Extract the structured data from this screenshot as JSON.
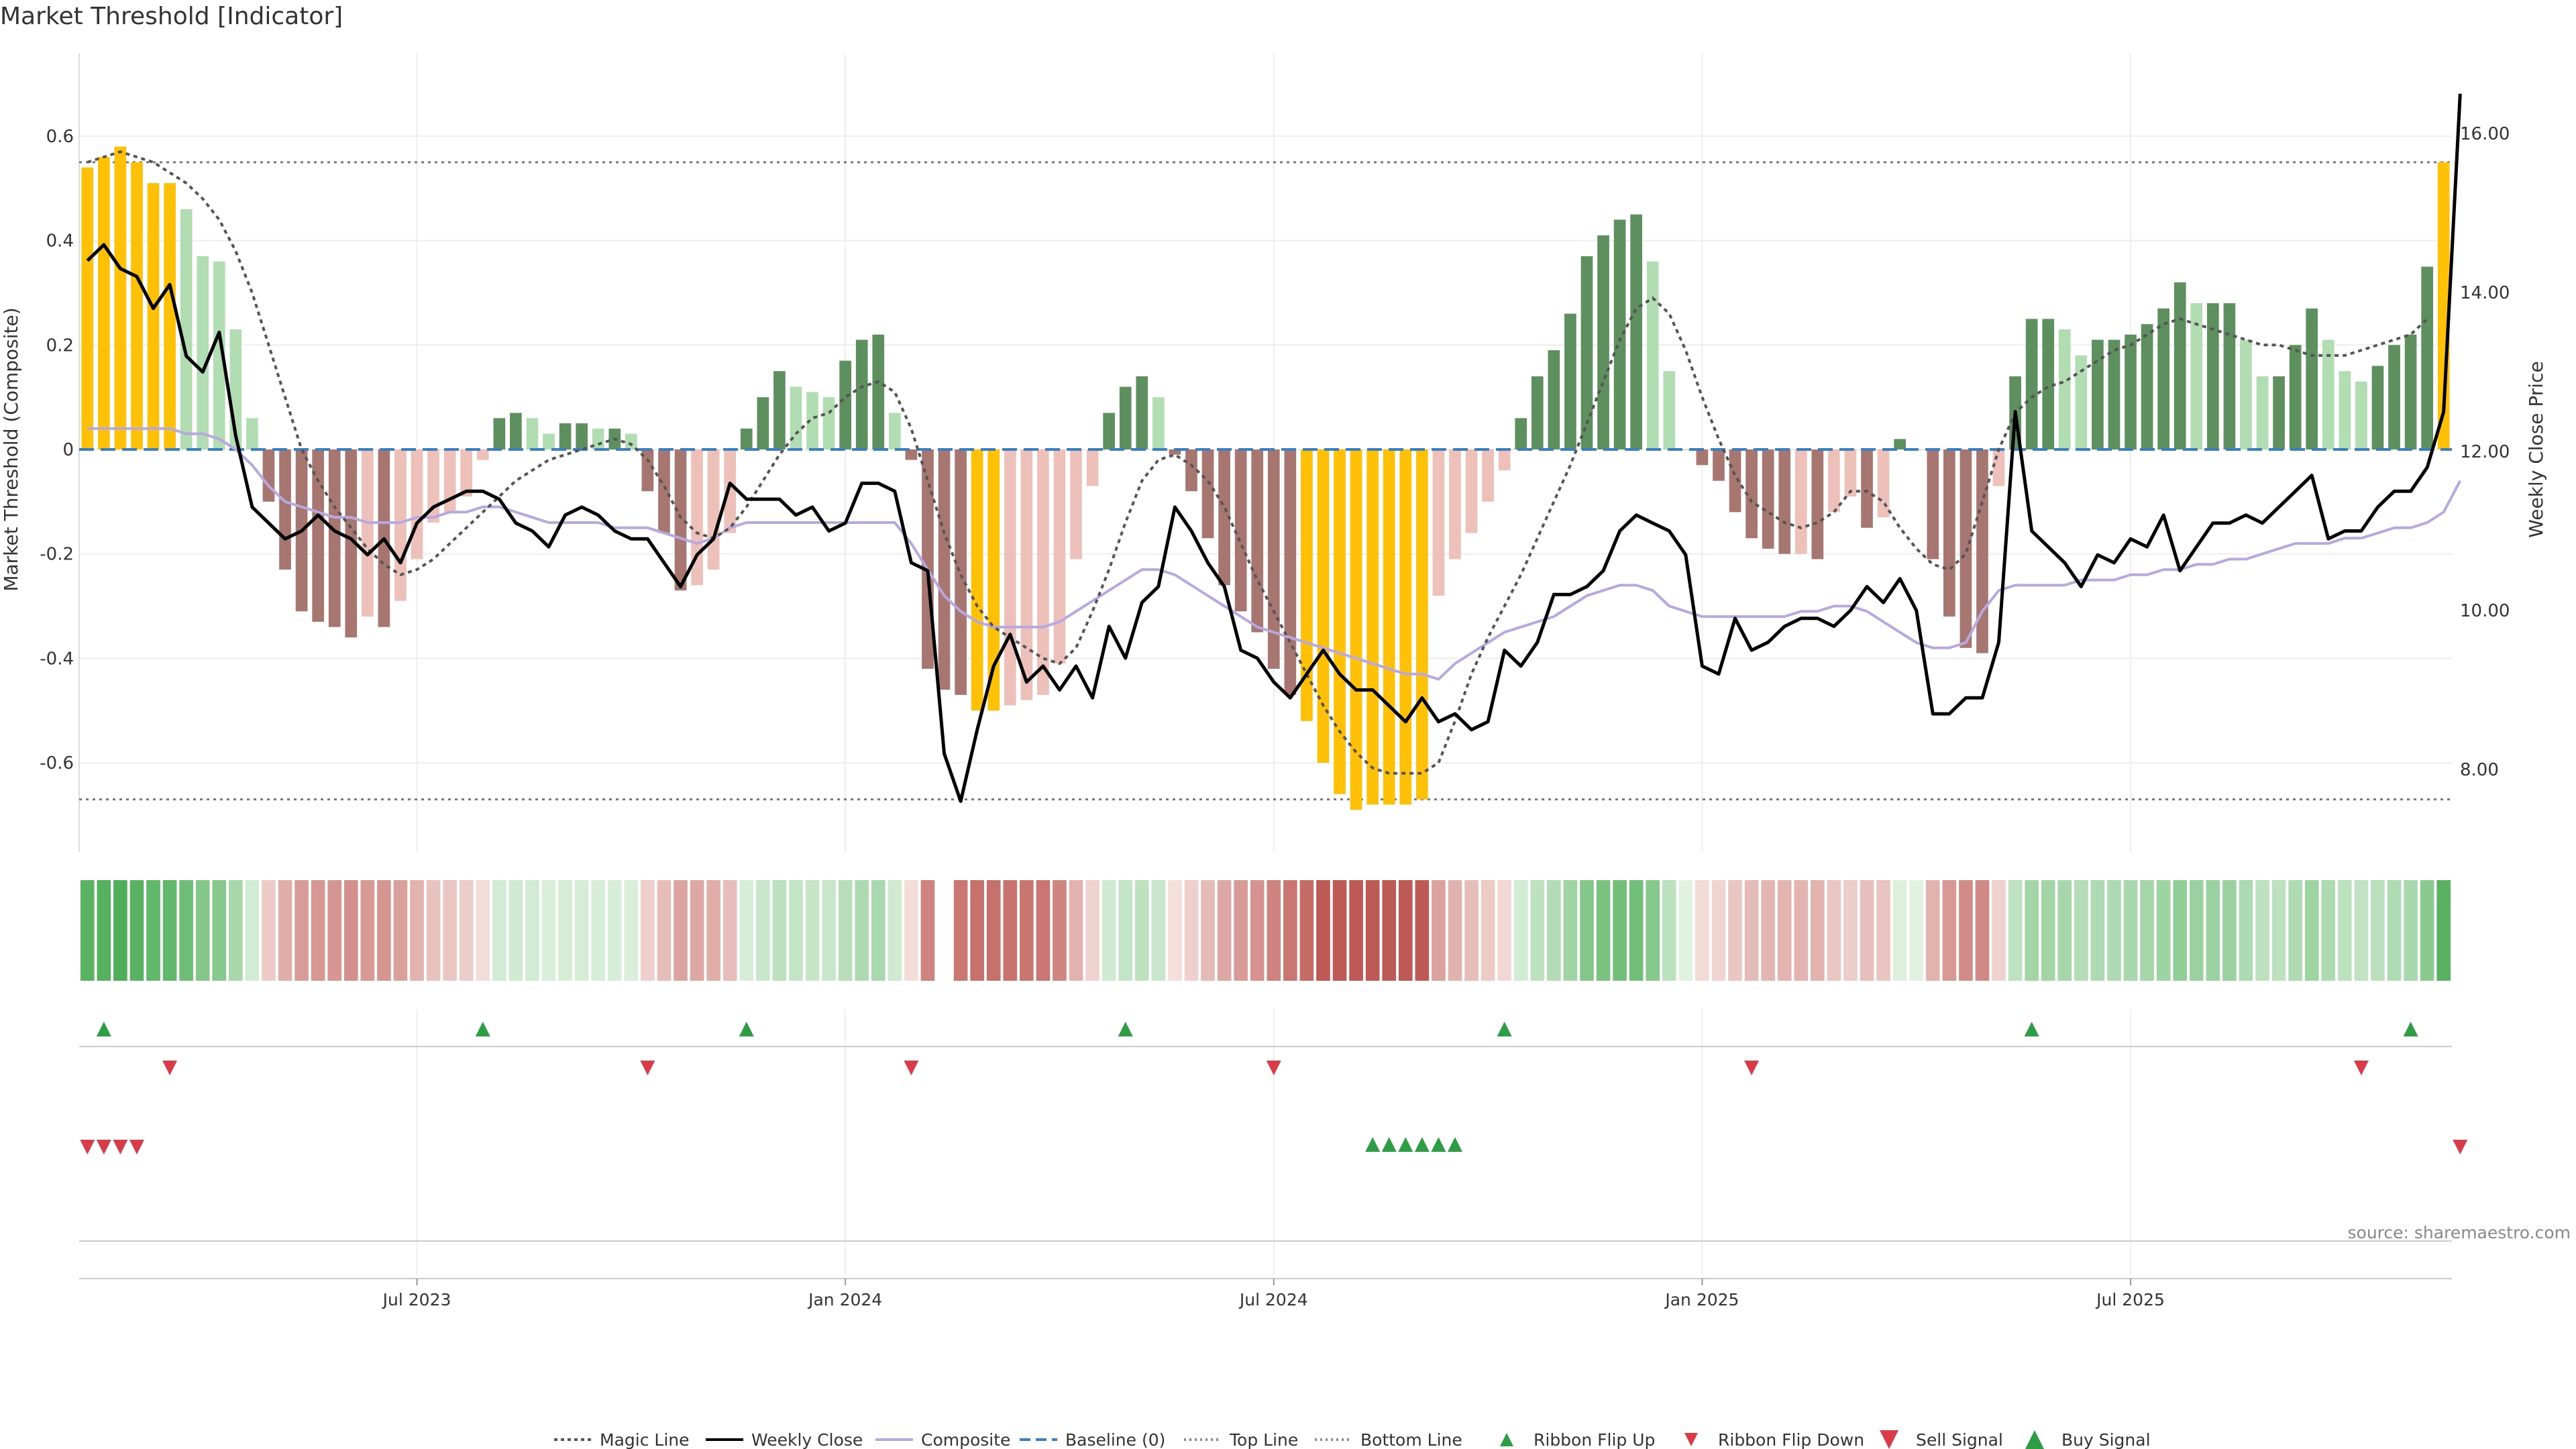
{
  "title": "Market Threshold [Indicator]",
  "source": "source: sharemaestro.com",
  "colors": {
    "yellow": "#FFC107",
    "green_dark": "#5E8F5E",
    "green_light": "#B2DCB2",
    "red_dark": "#A87670",
    "red_light": "#EDC0BA",
    "close": "#000000",
    "composite": "#B8A8E0",
    "magic": "#555555",
    "baseline": "#3A7FC0",
    "up": "#2E9E46",
    "down": "#D93B48"
  },
  "chart_data": {
    "type": "bar",
    "title": "Market Threshold [Indicator]",
    "ylabel_left": "Market Threshold (Composite)",
    "ylabel_right": "Weekly Close Price",
    "ylim_left": [
      -0.7,
      0.7
    ],
    "ylim_right": [
      7.0,
      16.8
    ],
    "yticks_left": [
      "0.6",
      "0.4",
      "0.2",
      "0",
      "-0.2",
      "-0.4",
      "-0.6"
    ],
    "yticks_right": [
      "16.00",
      "14.00",
      "12.00",
      "10.00",
      "8.00"
    ],
    "xticks": [
      {
        "label": "Jul 2023",
        "week": 20
      },
      {
        "label": "Jan 2024",
        "week": 46
      },
      {
        "label": "Jul 2024",
        "week": 72
      },
      {
        "label": "Jan 2025",
        "week": 98
      },
      {
        "label": "Jul 2025",
        "week": 124
      }
    ],
    "top_line": 0.55,
    "bottom_line": -0.67,
    "baseline": 0,
    "composite_bars": [
      0.54,
      0.56,
      0.58,
      0.55,
      0.51,
      0.51,
      0.46,
      0.37,
      0.36,
      0.23,
      0.06,
      -0.1,
      -0.23,
      -0.31,
      -0.33,
      -0.34,
      -0.36,
      -0.32,
      -0.34,
      -0.29,
      -0.21,
      -0.14,
      -0.12,
      -0.09,
      -0.02,
      0.06,
      0.07,
      0.06,
      0.03,
      0.05,
      0.05,
      0.04,
      0.04,
      0.03,
      -0.08,
      -0.16,
      -0.27,
      -0.26,
      -0.23,
      -0.16,
      0.04,
      0.1,
      0.15,
      0.12,
      0.11,
      0.1,
      0.17,
      0.21,
      0.22,
      0.07,
      -0.02,
      -0.42,
      -0.46,
      -0.47,
      -0.5,
      -0.5,
      -0.49,
      -0.48,
      -0.47,
      -0.41,
      -0.21,
      -0.07,
      0.07,
      0.12,
      0.14,
      0.1,
      -0.01,
      -0.08,
      -0.17,
      -0.26,
      -0.31,
      -0.35,
      -0.42,
      -0.47,
      -0.52,
      -0.6,
      -0.66,
      -0.69,
      -0.68,
      -0.68,
      -0.68,
      -0.67,
      -0.28,
      -0.21,
      -0.16,
      -0.1,
      -0.04,
      0.06,
      0.14,
      0.19,
      0.26,
      0.37,
      0.41,
      0.44,
      0.45,
      0.36,
      0.15,
      0.0,
      -0.03,
      -0.06,
      -0.12,
      -0.17,
      -0.19,
      -0.2,
      -0.2,
      -0.21,
      -0.12,
      -0.09,
      -0.15,
      -0.13,
      0.02,
      0.0,
      -0.21,
      -0.32,
      -0.38,
      -0.39,
      -0.07,
      0.14,
      0.25,
      0.25,
      0.23,
      0.18,
      0.21,
      0.21,
      0.22,
      0.24,
      0.27,
      0.32,
      0.28,
      0.28,
      0.28,
      0.21,
      0.14,
      0.14,
      0.2,
      0.27,
      0.21,
      0.15,
      0.13,
      0.16,
      0.2,
      0.22,
      0.35,
      0.55
    ],
    "weekly_close": [
      14.4,
      14.6,
      14.3,
      14.2,
      13.8,
      14.1,
      13.2,
      13.0,
      13.5,
      12.2,
      11.3,
      11.1,
      10.9,
      11.0,
      11.2,
      11.0,
      10.9,
      10.7,
      10.9,
      10.6,
      11.1,
      11.3,
      11.4,
      11.5,
      11.5,
      11.4,
      11.1,
      11.0,
      10.8,
      11.2,
      11.3,
      11.2,
      11.0,
      10.9,
      10.9,
      10.6,
      10.3,
      10.7,
      10.9,
      11.6,
      11.4,
      11.4,
      11.4,
      11.2,
      11.3,
      11.0,
      11.1,
      11.6,
      11.6,
      11.5,
      10.6,
      10.5,
      8.2,
      7.6,
      8.5,
      9.3,
      9.7,
      9.1,
      9.3,
      9.0,
      9.3,
      8.9,
      9.8,
      9.4,
      10.1,
      10.3,
      11.3,
      11.0,
      10.6,
      10.3,
      9.5,
      9.4,
      9.1,
      8.9,
      9.2,
      9.5,
      9.2,
      9.0,
      9.0,
      8.8,
      8.6,
      8.9,
      8.6,
      8.7,
      8.5,
      8.6,
      9.5,
      9.3,
      9.6,
      10.2,
      10.2,
      10.3,
      10.5,
      11.0,
      11.2,
      11.1,
      11.0,
      10.7,
      9.3,
      9.2,
      9.9,
      9.5,
      9.6,
      9.8,
      9.9,
      9.9,
      9.8,
      10.0,
      10.3,
      10.1,
      10.4,
      10.0,
      8.7,
      8.7,
      8.9,
      8.9,
      9.6,
      12.5,
      11.0,
      10.8,
      10.6,
      10.3,
      10.7,
      10.6,
      10.9,
      10.8,
      11.2,
      10.5,
      10.8,
      11.1,
      11.1,
      11.2,
      11.1,
      11.3,
      11.5,
      11.7,
      10.9,
      11.0,
      11.0,
      11.3,
      11.5,
      11.5,
      11.8,
      12.5,
      16.5
    ],
    "composite_line": [
      0.04,
      0.04,
      0.04,
      0.04,
      0.04,
      0.04,
      0.03,
      0.03,
      0.02,
      0.0,
      -0.03,
      -0.07,
      -0.1,
      -0.11,
      -0.12,
      -0.13,
      -0.13,
      -0.14,
      -0.14,
      -0.14,
      -0.13,
      -0.13,
      -0.12,
      -0.12,
      -0.11,
      -0.11,
      -0.12,
      -0.13,
      -0.14,
      -0.14,
      -0.14,
      -0.14,
      -0.15,
      -0.15,
      -0.15,
      -0.16,
      -0.17,
      -0.18,
      -0.17,
      -0.15,
      -0.14,
      -0.14,
      -0.14,
      -0.14,
      -0.14,
      -0.14,
      -0.14,
      -0.14,
      -0.14,
      -0.14,
      -0.18,
      -0.23,
      -0.28,
      -0.31,
      -0.33,
      -0.34,
      -0.34,
      -0.34,
      -0.34,
      -0.33,
      -0.31,
      -0.29,
      -0.27,
      -0.25,
      -0.23,
      -0.23,
      -0.24,
      -0.26,
      -0.28,
      -0.3,
      -0.32,
      -0.34,
      -0.35,
      -0.36,
      -0.37,
      -0.38,
      -0.39,
      -0.4,
      -0.41,
      -0.42,
      -0.43,
      -0.43,
      -0.44,
      -0.41,
      -0.39,
      -0.37,
      -0.35,
      -0.34,
      -0.33,
      -0.32,
      -0.3,
      -0.28,
      -0.27,
      -0.26,
      -0.26,
      -0.27,
      -0.3,
      -0.31,
      -0.32,
      -0.32,
      -0.32,
      -0.32,
      -0.32,
      -0.32,
      -0.31,
      -0.31,
      -0.3,
      -0.3,
      -0.31,
      -0.33,
      -0.35,
      -0.37,
      -0.38,
      -0.38,
      -0.37,
      -0.31,
      -0.27,
      -0.26,
      -0.26,
      -0.26,
      -0.26,
      -0.25,
      -0.25,
      -0.25,
      -0.24,
      -0.24,
      -0.23,
      -0.23,
      -0.22,
      -0.22,
      -0.21,
      -0.21,
      -0.2,
      -0.19,
      -0.18,
      -0.18,
      -0.18,
      -0.17,
      -0.17,
      -0.16,
      -0.15,
      -0.15,
      -0.14,
      -0.12,
      -0.06
    ],
    "magic_line": [
      0.55,
      0.56,
      0.57,
      0.56,
      0.55,
      0.53,
      0.51,
      0.48,
      0.44,
      0.38,
      0.3,
      0.2,
      0.1,
      0.0,
      -0.06,
      -0.11,
      -0.15,
      -0.19,
      -0.22,
      -0.24,
      -0.23,
      -0.21,
      -0.18,
      -0.15,
      -0.12,
      -0.09,
      -0.06,
      -0.04,
      -0.02,
      -0.01,
      0.0,
      0.01,
      0.02,
      0.01,
      -0.02,
      -0.07,
      -0.13,
      -0.16,
      -0.17,
      -0.15,
      -0.11,
      -0.06,
      -0.01,
      0.03,
      0.06,
      0.07,
      0.1,
      0.12,
      0.13,
      0.11,
      0.04,
      -0.06,
      -0.16,
      -0.24,
      -0.3,
      -0.34,
      -0.36,
      -0.38,
      -0.4,
      -0.41,
      -0.38,
      -0.31,
      -0.23,
      -0.14,
      -0.06,
      -0.02,
      -0.01,
      -0.03,
      -0.06,
      -0.11,
      -0.18,
      -0.25,
      -0.31,
      -0.37,
      -0.43,
      -0.49,
      -0.54,
      -0.58,
      -0.61,
      -0.62,
      -0.62,
      -0.62,
      -0.6,
      -0.52,
      -0.43,
      -0.36,
      -0.3,
      -0.24,
      -0.17,
      -0.1,
      -0.03,
      0.05,
      0.13,
      0.21,
      0.27,
      0.29,
      0.26,
      0.19,
      0.1,
      0.02,
      -0.05,
      -0.1,
      -0.12,
      -0.14,
      -0.15,
      -0.14,
      -0.12,
      -0.08,
      -0.08,
      -0.1,
      -0.15,
      -0.19,
      -0.22,
      -0.23,
      -0.2,
      -0.1,
      0.0,
      0.07,
      0.1,
      0.12,
      0.13,
      0.15,
      0.17,
      0.19,
      0.2,
      0.22,
      0.24,
      0.25,
      0.24,
      0.23,
      0.22,
      0.21,
      0.2,
      0.2,
      0.19,
      0.18,
      0.18,
      0.18,
      0.19,
      0.2,
      0.21,
      0.22,
      0.25
    ],
    "ribbon_flip_up_weeks": [
      1,
      24,
      40,
      63,
      86,
      118,
      141
    ],
    "ribbon_flip_down_weeks": [
      5,
      34,
      50,
      72,
      101,
      138
    ],
    "sell_signal_weeks": [
      0,
      1,
      2,
      3,
      144
    ],
    "buy_signal_weeks": [
      78,
      79,
      80,
      81,
      82,
      83
    ],
    "legend": [
      "Magic Line",
      "Weekly Close",
      "Composite",
      "Baseline (0)",
      "Top Line",
      "Bottom Line",
      "Ribbon Flip Up",
      "Ribbon Flip Down",
      "Sell Signal",
      "Buy Signal"
    ],
    "legend_position": "bottom-center",
    "grid": true
  }
}
